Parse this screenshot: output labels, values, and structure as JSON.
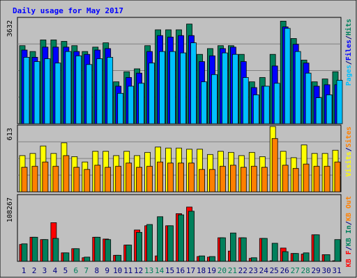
{
  "chart_data": {
    "type": "bar",
    "title": "Daily usage for May 2017",
    "categories": [
      "1",
      "2",
      "3",
      "4",
      "5",
      "6",
      "7",
      "8",
      "9",
      "10",
      "11",
      "12",
      "13",
      "14",
      "15",
      "16",
      "17",
      "18",
      "19",
      "20",
      "21",
      "22",
      "23",
      "24",
      "25",
      "26",
      "27",
      "28",
      "29",
      "30",
      "31"
    ],
    "weekend_days": [
      "6",
      "7",
      "13",
      "14",
      "20",
      "21",
      "27",
      "28"
    ],
    "panels": [
      {
        "scale_label": "3632",
        "ymax": 3632,
        "grid": true,
        "legend": [
          "Pages",
          "/",
          "Files",
          "/",
          "Hits"
        ],
        "series": [
          {
            "name": "Hits",
            "color": "#00805c",
            "values": [
              2700,
              2500,
              2900,
              2900,
              2850,
              2700,
              2500,
              2650,
              2800,
              1450,
              1800,
              1900,
              2700,
              3250,
              3250,
              3250,
              3450,
              2400,
              2600,
              2700,
              2700,
              2400,
              1450,
              1600,
              2400,
              3550,
              2950,
              2200,
              1450,
              1550,
              1800
            ]
          },
          {
            "name": "Files",
            "color": "#0000ff",
            "values": [
              2550,
              2300,
              2650,
              2650,
              2650,
              2500,
              2400,
              2550,
              2600,
              1300,
              1600,
              1750,
              2500,
              3050,
              3000,
              3050,
              3050,
              2150,
              2350,
              2600,
              2650,
              2150,
              1250,
              1300,
              2000,
              3350,
              2750,
              2100,
              1300,
              1350,
              1350
            ]
          },
          {
            "name": "Pages",
            "color": "#00c0ff",
            "values": [
              2300,
              2150,
              2250,
              2100,
              2500,
              2350,
              2050,
              2250,
              2300,
              1050,
              1300,
              1400,
              2100,
              2500,
              2500,
              2450,
              2800,
              1450,
              1700,
              2450,
              2400,
              1600,
              1000,
              1300,
              1400,
              3300,
              2500,
              1750,
              900,
              1000,
              1500
            ]
          }
        ]
      },
      {
        "scale_label": "613",
        "ymax": 613,
        "grid": true,
        "legend": [
          "Visits",
          "/",
          "Sites"
        ],
        "series": [
          {
            "name": "Visits",
            "color": "#ffff00",
            "values": [
              340,
              360,
              430,
              360,
              460,
              330,
              280,
              380,
              380,
              340,
              380,
              340,
              370,
              420,
              410,
              410,
              400,
              400,
              350,
              380,
              370,
              340,
              370,
              330,
              613,
              380,
              320,
              440,
              360,
              360,
              390
            ]
          },
          {
            "name": "Sites",
            "color": "#ff8000",
            "values": [
              230,
              240,
              280,
              240,
              340,
              230,
              210,
              250,
              230,
              240,
              270,
              230,
              240,
              280,
              270,
              270,
              270,
              210,
              210,
              240,
              250,
              230,
              240,
              230,
              500,
              250,
              220,
              260,
              240,
              240,
              280
            ]
          }
        ]
      },
      {
        "scale_label": "108267",
        "ymax": 108267,
        "grid": false,
        "legend": [
          "KB F",
          "/",
          "KB In",
          "/",
          "KB Out"
        ],
        "series": [
          {
            "name": "KB F",
            "color": "#ff0000",
            "values": [
              28000,
              40000,
              36000,
              64000,
              14000,
              21000,
              6000,
              40000,
              37000,
              10000,
              27000,
              52000,
              59000,
              9000,
              59000,
              79000,
              90000,
              8000,
              7000,
              39000,
              17000,
              39000,
              5000,
              38000,
              1000,
              22000,
              13000,
              12000,
              44000,
              11000,
              1000
            ]
          },
          {
            "name": "KB In",
            "color": "#00805c",
            "values": [
              29000,
              40000,
              36000,
              38000,
              14000,
              21000,
              7000,
              40000,
              36000,
              10000,
              27000,
              48000,
              61000,
              74000,
              59000,
              77000,
              83000,
              9000,
              8000,
              39000,
              47000,
              39000,
              6000,
              38000,
              30000,
              16000,
              13000,
              14000,
              44000,
              11000,
              36000
            ]
          },
          {
            "name": "KB Out",
            "color": "#ff8000",
            "values": [
              0,
              0,
              0,
              0,
              0,
              0,
              0,
              0,
              0,
              0,
              0,
              0,
              0,
              0,
              0,
              0,
              0,
              0,
              0,
              0,
              0,
              0,
              0,
              0,
              0,
              0,
              0,
              0,
              0,
              0,
              0
            ]
          }
        ]
      }
    ]
  },
  "colors": {
    "frame_background": "#c0c0c0",
    "plot_background": "#c0c0c0",
    "title_color": "#0000ff",
    "day_label_color": "#000080",
    "weekend_label_color": "#00805c",
    "legend_separator_color": "#000080"
  }
}
